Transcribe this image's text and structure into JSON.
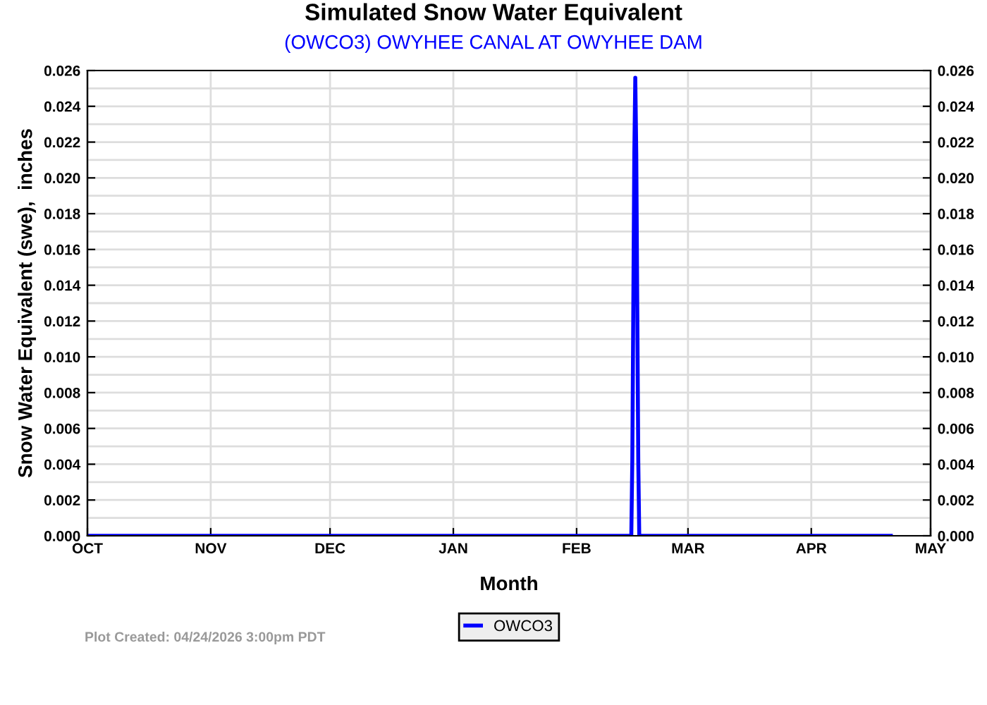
{
  "chart_data": {
    "type": "line",
    "title": "Simulated Snow Water Equivalent",
    "subtitle": "(OWCO3) OWYHEE CANAL AT OWYHEE DAM",
    "xlabel": "Month",
    "ylabel": "Snow Water Equivalent (swe),  inches",
    "annotations": [
      "Plot Created: 04/24/2026 3:00pm PDT"
    ],
    "series": [
      {
        "name": "OWCO3",
        "color": "#0000ff",
        "x": [
          "2025-10-01T00:00",
          "2026-02-14T18:00",
          "2026-02-15T00:00",
          "2026-02-15T06:00",
          "2026-02-15T12:00",
          "2026-02-15T18:00",
          "2026-02-16T00:00",
          "2026-02-16T06:00",
          "2026-02-16T12:00",
          "2026-02-16T18:00",
          "2026-04-21T00:00"
        ],
        "values": [
          0,
          0,
          0.0042,
          0.0128,
          0.0213,
          0.0256,
          0.0213,
          0.0128,
          0.0042,
          0,
          0
        ]
      }
    ],
    "xlim": [
      "2025-10-01",
      "2026-05-01"
    ],
    "xticks": [
      {
        "value": "2025-10-01",
        "label": "OCT"
      },
      {
        "value": "2025-11-01",
        "label": "NOV"
      },
      {
        "value": "2025-12-01",
        "label": "DEC"
      },
      {
        "value": "2026-01-01",
        "label": "JAN"
      },
      {
        "value": "2026-02-01",
        "label": "FEB"
      },
      {
        "value": "2026-03-01",
        "label": "MAR"
      },
      {
        "value": "2026-04-01",
        "label": "APR"
      },
      {
        "value": "2026-05-01",
        "label": "MAY"
      }
    ],
    "ylim": [
      0,
      0.026
    ],
    "yticks": [
      {
        "value": 0,
        "label": "0.000"
      },
      {
        "value": 0.002,
        "label": "0.002"
      },
      {
        "value": 0.004,
        "label": "0.004"
      },
      {
        "value": 0.006,
        "label": "0.006"
      },
      {
        "value": 0.008,
        "label": "0.008"
      },
      {
        "value": 0.01,
        "label": "0.010"
      },
      {
        "value": 0.012,
        "label": "0.012"
      },
      {
        "value": 0.014,
        "label": "0.014"
      },
      {
        "value": 0.016,
        "label": "0.016"
      },
      {
        "value": 0.018,
        "label": "0.018"
      },
      {
        "value": 0.02,
        "label": "0.020"
      },
      {
        "value": 0.022,
        "label": "0.022"
      },
      {
        "value": 0.024,
        "label": "0.024"
      },
      {
        "value": 0.026,
        "label": "0.026"
      }
    ],
    "y2lim": [
      0,
      0.026
    ],
    "y2ticks": [
      {
        "value": 0,
        "label": "0.000"
      },
      {
        "value": 0.002,
        "label": "0.002"
      },
      {
        "value": 0.004,
        "label": "0.004"
      },
      {
        "value": 0.006,
        "label": "0.006"
      },
      {
        "value": 0.008,
        "label": "0.008"
      },
      {
        "value": 0.01,
        "label": "0.010"
      },
      {
        "value": 0.012,
        "label": "0.012"
      },
      {
        "value": 0.014,
        "label": "0.014"
      },
      {
        "value": 0.016,
        "label": "0.016"
      },
      {
        "value": 0.018,
        "label": "0.018"
      },
      {
        "value": 0.02,
        "label": "0.020"
      },
      {
        "value": 0.022,
        "label": "0.022"
      },
      {
        "value": 0.024,
        "label": "0.024"
      },
      {
        "value": 0.026,
        "label": "0.026"
      }
    ],
    "grid": true,
    "legend": "bottom",
    "line_style": "solid"
  }
}
